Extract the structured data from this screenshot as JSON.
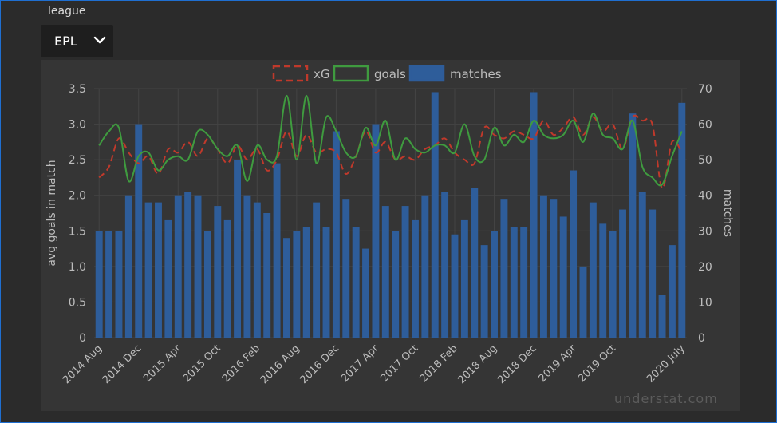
{
  "filter": {
    "label": "league",
    "selected": "EPL"
  },
  "watermark": "understat.com",
  "colors": {
    "xg": "#c0392b",
    "goals": "#3f9b3f",
    "matches": "#2e5d9a",
    "grid": "#444444",
    "tick": "#bdbdbd"
  },
  "chart_data": {
    "type": "bar",
    "legend_position": "top-center",
    "grid": true,
    "ylabel": "avg goals in match",
    "y2label": "matches",
    "ylim": [
      0,
      3.5
    ],
    "y2lim": [
      0,
      70
    ],
    "yticks": [
      "0",
      "0.5",
      "1.0",
      "1.5",
      "2.0",
      "2.5",
      "3.0",
      "3.5"
    ],
    "y2ticks": [
      "0",
      "10",
      "20",
      "30",
      "40",
      "50",
      "60",
      "70"
    ],
    "x_tick_labels": [
      "2014 Aug",
      "2014 Dec",
      "2015 Apr",
      "2015 Oct",
      "2016 Feb",
      "2016 Aug",
      "2016 Dec",
      "2017 Apr",
      "2017 Oct",
      "2018 Feb",
      "2018 Aug",
      "2018 Dec",
      "2019 Apr",
      "2019 Oct",
      "2020 July"
    ],
    "x_tick_index": [
      0,
      4,
      8,
      12,
      16,
      20,
      24,
      28,
      32,
      36,
      40,
      44,
      48,
      52,
      59
    ],
    "series": [
      {
        "name": "xG",
        "kind": "line",
        "style": "dashed",
        "axis": "left",
        "values": [
          2.25,
          2.4,
          2.8,
          2.6,
          2.45,
          2.55,
          2.3,
          2.65,
          2.6,
          2.75,
          2.55,
          2.8,
          2.65,
          2.45,
          2.7,
          2.5,
          2.65,
          2.35,
          2.5,
          2.9,
          2.55,
          2.85,
          2.6,
          2.65,
          2.6,
          2.3,
          2.55,
          2.9,
          2.6,
          2.75,
          2.5,
          2.55,
          2.5,
          2.65,
          2.7,
          2.8,
          2.6,
          2.5,
          2.45,
          2.95,
          2.85,
          2.8,
          2.9,
          2.85,
          2.8,
          3.05,
          2.85,
          2.95,
          3.1,
          2.85,
          3.1,
          2.9,
          3.0,
          2.65,
          3.1,
          3.05,
          3.0,
          2.1,
          2.75,
          2.6
        ]
      },
      {
        "name": "goals",
        "kind": "line",
        "style": "solid",
        "axis": "left",
        "values": [
          2.7,
          2.9,
          2.95,
          2.2,
          2.55,
          2.6,
          2.35,
          2.5,
          2.55,
          2.5,
          2.9,
          2.85,
          2.65,
          2.55,
          2.7,
          2.2,
          2.7,
          2.5,
          2.55,
          3.4,
          2.5,
          3.4,
          2.45,
          3.1,
          2.9,
          2.6,
          2.55,
          2.95,
          2.7,
          3.05,
          2.5,
          2.8,
          2.65,
          2.6,
          2.7,
          2.7,
          2.6,
          3.0,
          2.55,
          2.5,
          2.95,
          2.7,
          2.85,
          2.75,
          3.05,
          2.85,
          2.8,
          2.85,
          3.05,
          2.75,
          3.15,
          2.85,
          2.8,
          2.65,
          3.05,
          2.4,
          2.25,
          2.15,
          2.55,
          2.9
        ]
      },
      {
        "name": "matches",
        "kind": "bar",
        "axis": "right",
        "values": [
          30,
          30,
          30,
          40,
          60,
          38,
          38,
          33,
          40,
          41,
          40,
          30,
          37,
          33,
          50,
          40,
          38,
          35,
          49,
          28,
          30,
          31,
          38,
          31,
          58,
          39,
          31,
          25,
          60,
          37,
          30,
          37,
          33,
          40,
          69,
          41,
          29,
          33,
          42,
          26,
          30,
          39,
          31,
          31,
          69,
          40,
          39,
          34,
          47,
          20,
          38,
          32,
          30,
          36,
          63,
          41,
          36,
          12,
          26,
          66
        ]
      }
    ]
  }
}
